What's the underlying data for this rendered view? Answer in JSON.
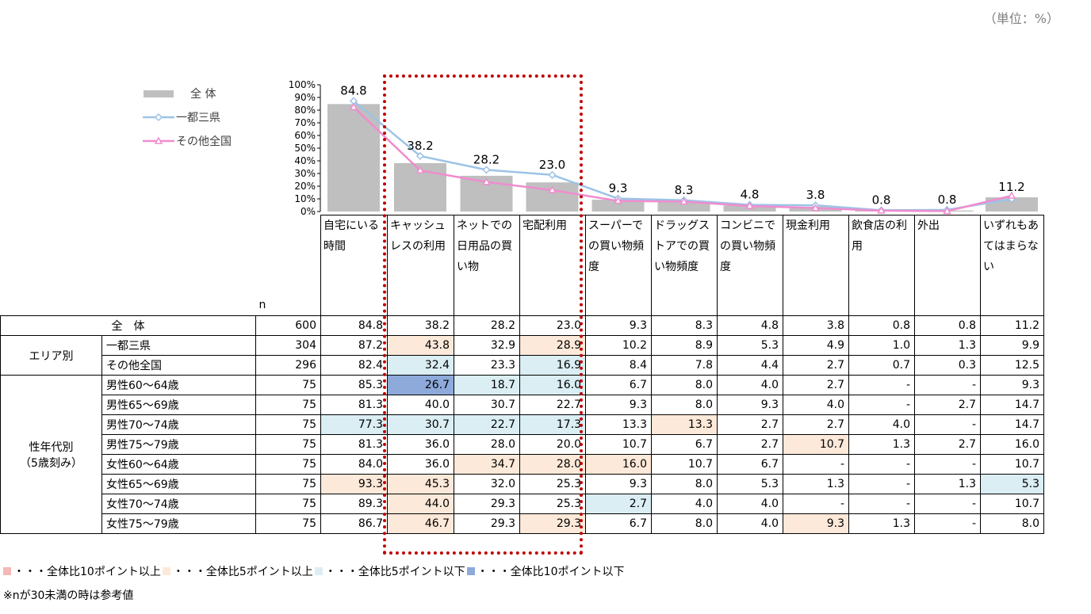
{
  "unit_label": "（単位：%）",
  "chart_data": {
    "type": "bar",
    "categories": [
      "自宅にいる時間",
      "キャッシュレスの利用",
      "ネットでの日用品の買い物",
      "宅配利用",
      "スーパーでの買い物頻度",
      "ドラッグストアでの買い物頻度",
      "コンビニでの買い物頻度",
      "現金利用",
      "飲食店の利用",
      "外出",
      "いずれもあてはまらない"
    ],
    "series": [
      {
        "name": "全 体",
        "type": "bar",
        "values": [
          84.8,
          38.2,
          28.2,
          23.0,
          9.3,
          8.3,
          4.8,
          3.8,
          0.8,
          0.8,
          11.2
        ]
      },
      {
        "name": "一都三県",
        "type": "line",
        "values": [
          87.2,
          43.8,
          32.9,
          28.9,
          10.2,
          8.9,
          5.3,
          4.9,
          1.0,
          1.3,
          9.9
        ]
      },
      {
        "name": "その他全国",
        "type": "line",
        "values": [
          82.4,
          32.4,
          23.3,
          16.9,
          8.4,
          7.8,
          4.4,
          2.7,
          0.7,
          0.3,
          12.5
        ]
      }
    ],
    "data_labels": [
      "84.8",
      "38.2",
      "28.2",
      "23.0",
      "9.3",
      "8.3",
      "4.8",
      "3.8",
      "0.8",
      "0.8",
      "11.2"
    ],
    "y_ticks": [
      "0%",
      "10%",
      "20%",
      "30%",
      "40%",
      "50%",
      "60%",
      "70%",
      "80%",
      "90%",
      "100%"
    ],
    "ylim": [
      0,
      100
    ],
    "colors": {
      "bar": "#bfbfbf",
      "line1": "#9dc3e6",
      "line2": "#f08ccf"
    }
  },
  "table": {
    "n_header": "n",
    "col_headers": [
      "自宅にいる時間",
      "キャッシュレスの利用",
      "ネットでの日用品の買い物",
      "宅配利用",
      "スーパーでの買い物頻度",
      "ドラッグストアでの買い物頻度",
      "コンビニでの買い物頻度",
      "現金利用",
      "飲食店の利用",
      "外出",
      "いずれもあてはまらない"
    ],
    "groups": {
      "total": "全　体",
      "area": "エリア別",
      "age1": "性年代別",
      "age2": "（5歳刻み）"
    },
    "rows": [
      {
        "label": "全　体",
        "n": "600",
        "values": [
          "84.8",
          "38.2",
          "28.2",
          "23.0",
          "9.3",
          "8.3",
          "4.8",
          "3.8",
          "0.8",
          "0.8",
          "11.2"
        ],
        "marks": [
          "",
          "",
          "",
          "",
          "",
          "",
          "",
          "",
          "",
          "",
          ""
        ]
      },
      {
        "label": "一都三県",
        "n": "304",
        "values": [
          "87.2",
          "43.8",
          "32.9",
          "28.9",
          "10.2",
          "8.9",
          "5.3",
          "4.9",
          "1.0",
          "1.3",
          "9.9"
        ],
        "marks": [
          "",
          "o2",
          "",
          "o2",
          "",
          "",
          "",
          "",
          "",
          "",
          ""
        ]
      },
      {
        "label": "その他全国",
        "n": "296",
        "values": [
          "82.4",
          "32.4",
          "23.3",
          "16.9",
          "8.4",
          "7.8",
          "4.4",
          "2.7",
          "0.7",
          "0.3",
          "12.5"
        ],
        "marks": [
          "",
          "b1",
          "",
          "b1",
          "",
          "",
          "",
          "",
          "",
          "",
          ""
        ]
      },
      {
        "label": "男性60～64歳",
        "n": "75",
        "values": [
          "85.3",
          "26.7",
          "18.7",
          "16.0",
          "6.7",
          "8.0",
          "4.0",
          "2.7",
          "-",
          "-",
          "9.3"
        ],
        "marks": [
          "",
          "b2",
          "b1",
          "b1",
          "",
          "",
          "",
          "",
          "",
          "",
          ""
        ]
      },
      {
        "label": "男性65～69歳",
        "n": "75",
        "values": [
          "81.3",
          "40.0",
          "30.7",
          "22.7",
          "9.3",
          "8.0",
          "9.3",
          "4.0",
          "-",
          "2.7",
          "14.7"
        ],
        "marks": [
          "",
          "",
          "",
          "",
          "",
          "",
          "",
          "",
          "",
          "",
          ""
        ]
      },
      {
        "label": "男性70～74歳",
        "n": "75",
        "values": [
          "77.3",
          "30.7",
          "22.7",
          "17.3",
          "13.3",
          "13.3",
          "2.7",
          "2.7",
          "4.0",
          "-",
          "14.7"
        ],
        "marks": [
          "b1",
          "b1",
          "b1",
          "b1",
          "",
          "o2",
          "",
          "",
          "",
          "",
          ""
        ]
      },
      {
        "label": "男性75～79歳",
        "n": "75",
        "values": [
          "81.3",
          "36.0",
          "28.0",
          "20.0",
          "10.7",
          "6.7",
          "2.7",
          "10.7",
          "1.3",
          "2.7",
          "16.0"
        ],
        "marks": [
          "",
          "",
          "",
          "",
          "",
          "",
          "",
          "o2",
          "",
          "",
          ""
        ]
      },
      {
        "label": "女性60～64歳",
        "n": "75",
        "values": [
          "84.0",
          "36.0",
          "34.7",
          "28.0",
          "16.0",
          "10.7",
          "6.7",
          "-",
          "-",
          "-",
          "10.7"
        ],
        "marks": [
          "",
          "",
          "o2",
          "o2",
          "o2",
          "",
          "",
          "",
          "",
          "",
          ""
        ]
      },
      {
        "label": "女性65～69歳",
        "n": "75",
        "values": [
          "93.3",
          "45.3",
          "32.0",
          "25.3",
          "9.3",
          "8.0",
          "5.3",
          "1.3",
          "-",
          "1.3",
          "5.3"
        ],
        "marks": [
          "o2",
          "o2",
          "",
          "",
          "",
          "",
          "",
          "",
          "",
          "",
          "b1"
        ]
      },
      {
        "label": "女性70～74歳",
        "n": "75",
        "values": [
          "89.3",
          "44.0",
          "29.3",
          "25.3",
          "2.7",
          "4.0",
          "4.0",
          "-",
          "-",
          "-",
          "10.7"
        ],
        "marks": [
          "",
          "o2",
          "",
          "",
          "b1",
          "",
          "",
          "",
          "",
          "",
          ""
        ]
      },
      {
        "label": "女性75～79歳",
        "n": "75",
        "values": [
          "86.7",
          "46.7",
          "29.3",
          "29.3",
          "6.7",
          "8.0",
          "4.0",
          "9.3",
          "1.3",
          "-",
          "8.0"
        ],
        "marks": [
          "",
          "o2",
          "",
          "o2",
          "",
          "",
          "",
          "o2",
          "",
          "",
          ""
        ]
      }
    ]
  },
  "legend_bottom": [
    {
      "text": "・・・全体比10ポイント以上",
      "color": "#f4b8b8"
    },
    {
      "text": "・・・全体比5ポイント以上",
      "color": "#fde9d9"
    },
    {
      "text": "・・・全体比5ポイント以下",
      "color": "#daeef3"
    },
    {
      "text": "・・・全体比10ポイント以下",
      "color": "#8eaadb"
    }
  ],
  "note": "※nが30未満の時は参考値"
}
